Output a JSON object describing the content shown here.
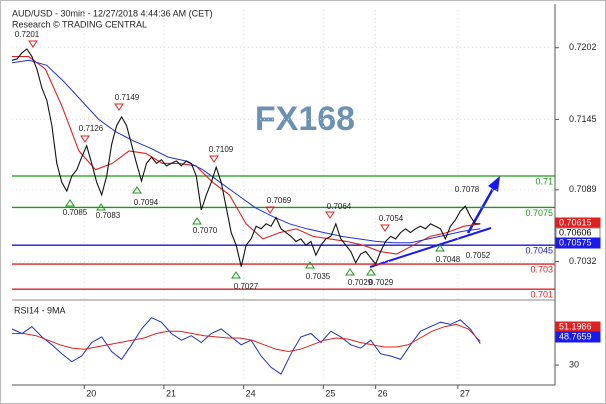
{
  "chart_data": {
    "type": "line",
    "title": "AUD/USD - 30min - 12/27/2018 4:44:36 AM (CET)",
    "subtitle": "Research © TRADING CENTRAL",
    "watermark": "FX168",
    "xlim": [
      0,
      109
    ],
    "xticks": [
      {
        "value": 14.5,
        "label": "20"
      },
      {
        "value": 30.5,
        "label": "21"
      },
      {
        "value": 46.5,
        "label": "24"
      },
      {
        "value": 62.5,
        "label": "25"
      },
      {
        "value": 73,
        "label": "26"
      },
      {
        "value": 89.5,
        "label": "27"
      }
    ],
    "ylim": [
      0.7003,
      0.7232
    ],
    "yticks": [
      0.7202,
      0.7145,
      0.7089,
      0.7032
    ],
    "series": [
      {
        "name": "AUD/USD",
        "color": "#111111",
        "values": [
          0.7192,
          0.7193,
          0.7198,
          0.7201,
          0.7195,
          0.7185,
          0.717,
          0.716,
          0.714,
          0.711,
          0.7095,
          0.7088,
          0.71,
          0.7105,
          0.7115,
          0.7124,
          0.711,
          0.7095,
          0.7085,
          0.71,
          0.7125,
          0.714,
          0.7147,
          0.714,
          0.7125,
          0.711,
          0.7096,
          0.711,
          0.7115,
          0.711,
          0.7113,
          0.7108,
          0.711,
          0.7112,
          0.7108,
          0.7112,
          0.711,
          0.71,
          0.7073,
          0.7085,
          0.7095,
          0.7107,
          0.7095,
          0.7075,
          0.7055,
          0.7045,
          0.7028,
          0.7045,
          0.705,
          0.706,
          0.7058,
          0.7062,
          0.706,
          0.7067,
          0.7058,
          0.7055,
          0.7052,
          0.7048,
          0.705,
          0.7045,
          0.7048,
          0.7037,
          0.7045,
          0.705,
          0.7052,
          0.7062,
          0.705,
          0.7045,
          0.704,
          0.7031,
          0.7038,
          0.704,
          0.7035,
          0.703,
          0.704,
          0.7048,
          0.7052,
          0.705,
          0.7055,
          0.7058,
          0.7055,
          0.7058,
          0.706,
          0.7058,
          0.7062,
          0.706,
          0.7058,
          0.705,
          0.706,
          0.7065,
          0.7072,
          0.7076,
          0.7068,
          0.7062,
          0.7062
        ]
      },
      {
        "name": "MA fast",
        "color": "#e02020",
        "values": [
          0.7195,
          0.7195,
          0.7185,
          0.7155,
          0.712,
          0.7105,
          0.711,
          0.712,
          0.7118,
          0.711,
          0.711,
          0.7108,
          0.7095,
          0.7085,
          0.7062,
          0.705,
          0.7055,
          0.7058,
          0.7052,
          0.705,
          0.7048,
          0.7045,
          0.704,
          0.7038,
          0.7045,
          0.7052,
          0.7055,
          0.706,
          0.7062
        ]
      },
      {
        "name": "MA slow",
        "color": "#2030e0",
        "values": [
          0.719,
          0.7192,
          0.7188,
          0.7175,
          0.716,
          0.7145,
          0.7135,
          0.7128,
          0.7122,
          0.7115,
          0.7112,
          0.7105,
          0.7095,
          0.7085,
          0.7075,
          0.7068,
          0.7062,
          0.7058,
          0.7055,
          0.7052,
          0.705,
          0.7048,
          0.7047,
          0.7047,
          0.705,
          0.7053,
          0.7056,
          0.7058
        ]
      }
    ],
    "levels": [
      {
        "value": 0.71,
        "label": "0.71",
        "color": "#1a9a1a"
      },
      {
        "value": 0.7075,
        "label": "0.7075",
        "color": "#1a9a1a"
      },
      {
        "value": 0.7045,
        "label": "0.7045",
        "color": "#1a1acc"
      },
      {
        "value": 0.703,
        "label": "0.703",
        "color": "#e02020"
      },
      {
        "value": 0.701,
        "label": "0.701",
        "color": "#e02020"
      }
    ],
    "price_tags": [
      {
        "value": 0.70615,
        "label": "0.70615",
        "color": "#e02020"
      },
      {
        "value": 0.70606,
        "label": "0.70606",
        "color": "#ffffff"
      },
      {
        "value": 0.70575,
        "label": "0.70575",
        "color": "#1a1aee"
      }
    ],
    "annotations": [
      {
        "value": 0.7201,
        "label": "0.7201"
      },
      {
        "value": 0.7149,
        "label": "0.7149"
      },
      {
        "value": 0.7126,
        "label": "0.7126"
      },
      {
        "value": 0.7109,
        "label": "0.7109"
      },
      {
        "value": 0.7085,
        "label": "0.7085"
      },
      {
        "value": 0.7083,
        "label": "0.7083"
      },
      {
        "value": 0.7094,
        "label": "0.7094"
      },
      {
        "value": 0.707,
        "label": "0.7070"
      },
      {
        "value": 0.7069,
        "label": "0.7069"
      },
      {
        "value": 0.7064,
        "label": "0.7064"
      },
      {
        "value": 0.7054,
        "label": "0.7054"
      },
      {
        "value": 0.7078,
        "label": "0.7078"
      },
      {
        "value": 0.7027,
        "label": "0.7027"
      },
      {
        "value": 0.7035,
        "label": "0.7035"
      },
      {
        "value": 0.7029,
        "label": "0.7029"
      },
      {
        "value": 0.7029,
        "label": "0.7029"
      },
      {
        "value": 0.7048,
        "label": "0.7048"
      },
      {
        "value": 0.7052,
        "label": "0.7052"
      }
    ],
    "rsi": {
      "title": "RSI14 - 9MA",
      "ylim": [
        15,
        85
      ],
      "yticks": [
        30
      ],
      "series": [
        {
          "name": "RSI14",
          "color": "#2030c0",
          "values": [
            62,
            58,
            64,
            55,
            48,
            40,
            33,
            38,
            50,
            55,
            42,
            35,
            48,
            62,
            72,
            68,
            58,
            52,
            56,
            50,
            58,
            62,
            55,
            48,
            52,
            38,
            28,
            22,
            40,
            55,
            58,
            50,
            60,
            55,
            48,
            45,
            52,
            40,
            38,
            35,
            48,
            60,
            64,
            68,
            66,
            70,
            62,
            49
          ]
        },
        {
          "name": "9MA",
          "color": "#e02020",
          "values": [
            58,
            58,
            56,
            52,
            48,
            45,
            44,
            46,
            48,
            50,
            52,
            54,
            58,
            60,
            60,
            58,
            56,
            55,
            54,
            54,
            52,
            48,
            44,
            42,
            44,
            48,
            52,
            54,
            53,
            50,
            48,
            46,
            46,
            48,
            54,
            60,
            64,
            66,
            62,
            51
          ]
        }
      ],
      "price_tags": [
        {
          "value": 51.1986,
          "label": "51.1986",
          "color": "#e02020"
        },
        {
          "value": 48.7659,
          "label": "48.7659",
          "color": "#1a1aee"
        }
      ]
    }
  }
}
